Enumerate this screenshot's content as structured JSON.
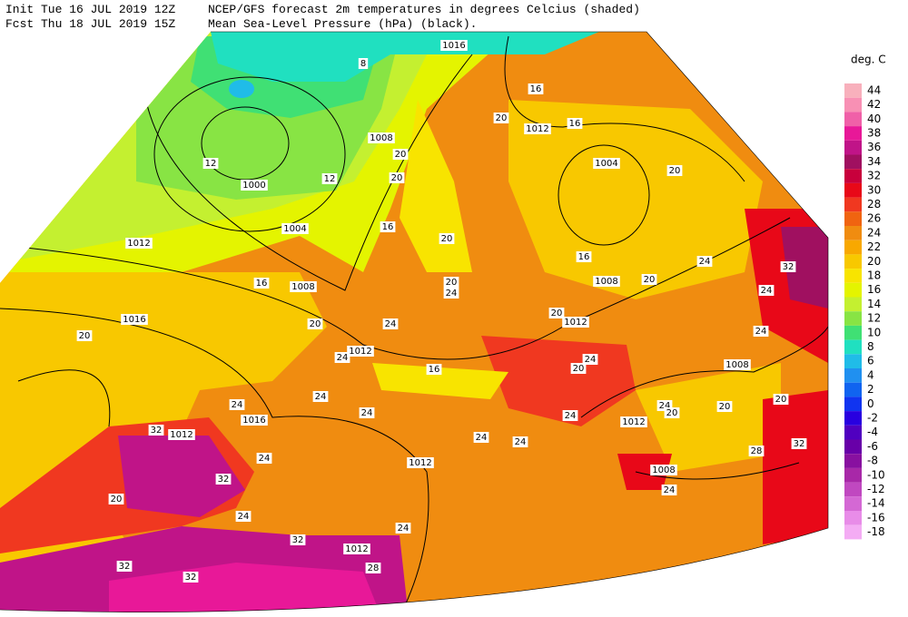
{
  "header": {
    "init": "Init  Tue 16 JUL 2019 12Z",
    "forecast": "Fcst Thu 18 JUL 2019 15Z",
    "title": "NCEP/GFS forecast 2m temperatures in degrees Celcius (shaded)",
    "subtitle": "Mean Sea-Level Pressure (hPa) (black)."
  },
  "colorbar": {
    "unit": "deg. C",
    "levels": [
      44,
      42,
      40,
      38,
      36,
      34,
      32,
      30,
      28,
      26,
      24,
      22,
      20,
      18,
      16,
      14,
      12,
      10,
      8,
      6,
      4,
      2,
      0,
      -2,
      -4,
      -6,
      -8,
      -10,
      -12,
      -14,
      -16,
      -18
    ],
    "colors": [
      "#f8b0bc",
      "#f890b4",
      "#f060a8",
      "#e81898",
      "#c01488",
      "#a01060",
      "#c8003c",
      "#e80818",
      "#f03820",
      "#f06410",
      "#f08c10",
      "#f8a800",
      "#f8c800",
      "#f8e400",
      "#e4f400",
      "#c4f030",
      "#88e444",
      "#40e074",
      "#20e0c0",
      "#20bce8",
      "#2090f0",
      "#1064f0",
      "#1034f0",
      "#2800e0",
      "#5000c0",
      "#6800a8",
      "#8810a0",
      "#a828a8",
      "#c048c0",
      "#d468d4",
      "#e88ce8",
      "#f4acf4"
    ]
  },
  "map": {
    "isobar_labels": [
      1016,
      1008,
      1012,
      1004,
      1000,
      1004,
      1012,
      1008,
      1008,
      1016,
      1012,
      1012,
      1008,
      1016,
      1012,
      1012,
      1012,
      1008,
      1012
    ],
    "temperature_labels": [
      8,
      16,
      16,
      20,
      12,
      12,
      20,
      20,
      20,
      16,
      20,
      16,
      24,
      20,
      16,
      20,
      24,
      24,
      32,
      20,
      24,
      20,
      24,
      20,
      24,
      16,
      20,
      24,
      24,
      20,
      20,
      20,
      24,
      24,
      24,
      24,
      32,
      32,
      24,
      24,
      24,
      32,
      24,
      20,
      24,
      24,
      32,
      32,
      28,
      32,
      28
    ]
  }
}
